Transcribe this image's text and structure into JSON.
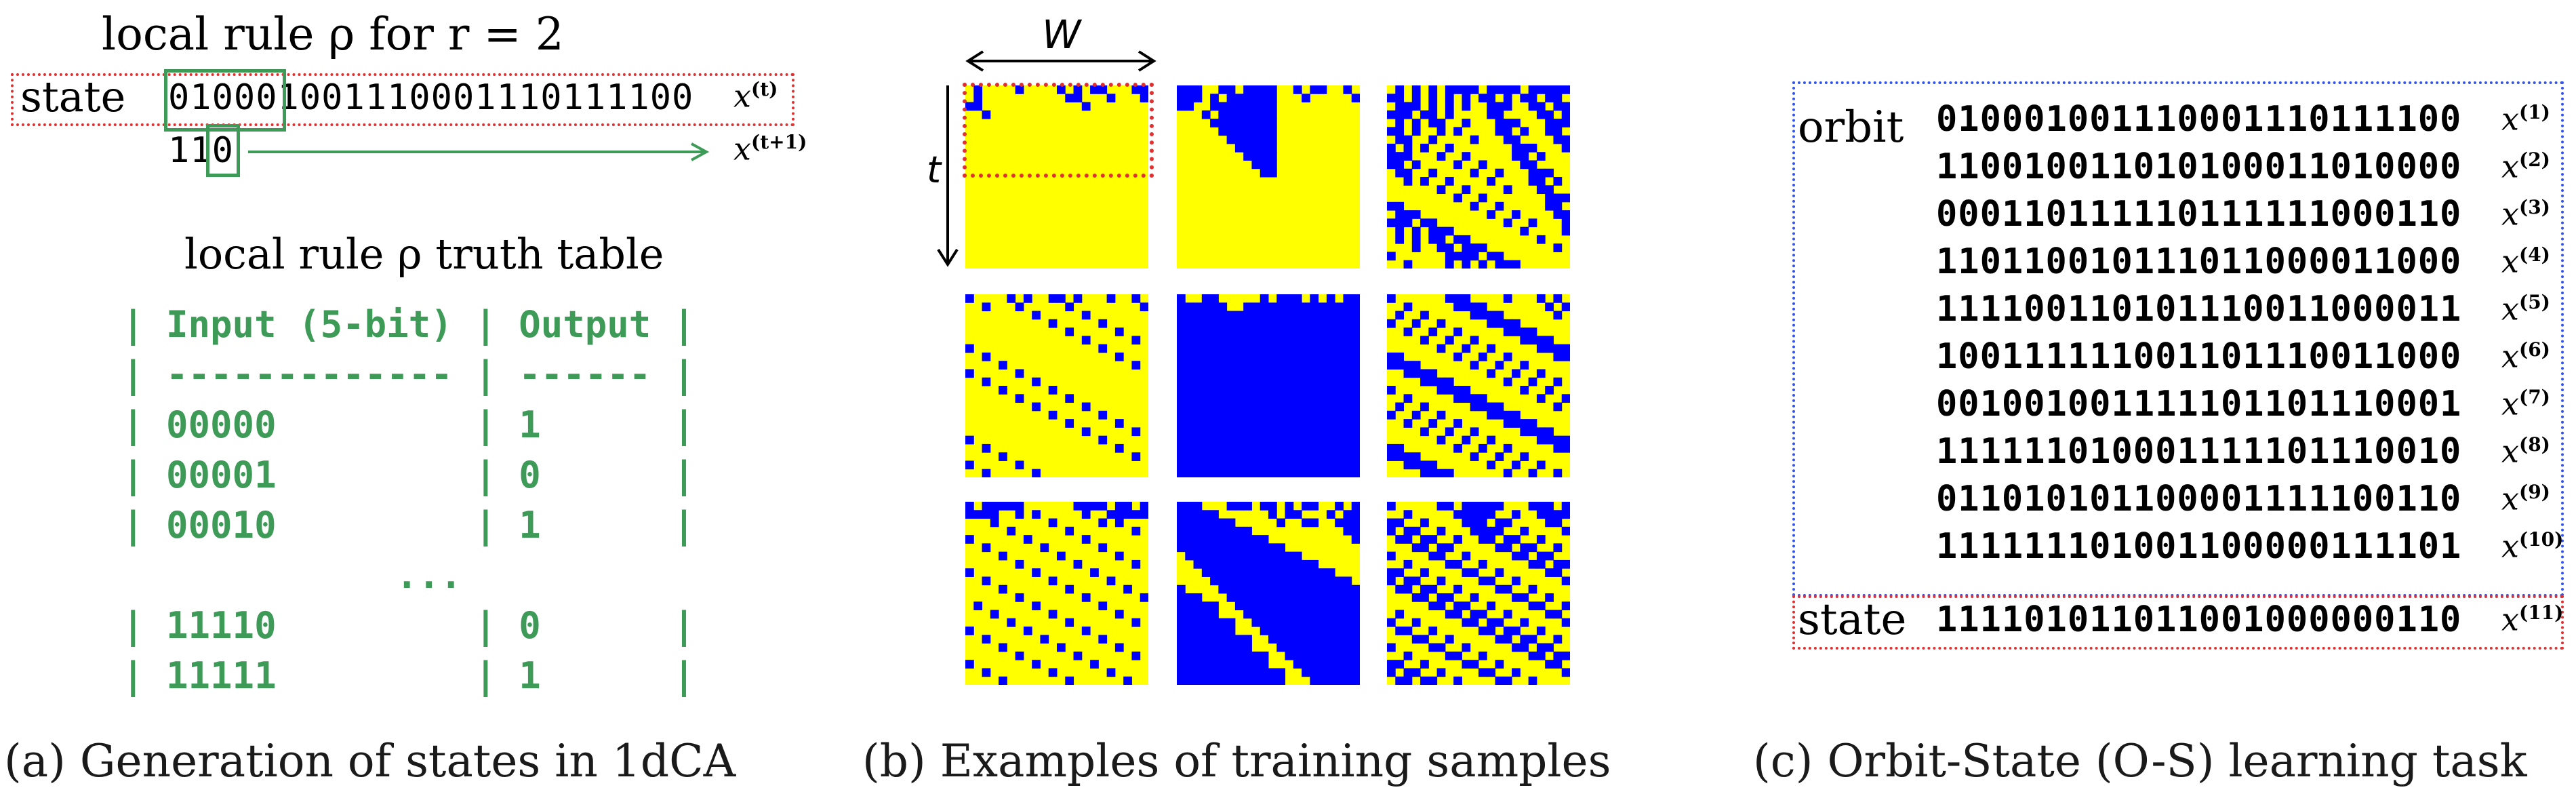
{
  "panel_a": {
    "title": "local rule ρ for r = 2",
    "state_label": "state",
    "state_bits": "010001001110001110111100",
    "x_t_label": "x",
    "x_t_sup": "(t)",
    "next_bits_prefix": "11",
    "next_bits_last": "0",
    "x_t1_label": "x",
    "x_t1_sup": "(t+1)",
    "table_title": "local rule ρ truth table",
    "table_lines": [
      "| Input (5-bit) | Output |",
      "| ------------- | ------ |",
      "| 00000         | 1      |",
      "| 00001         | 0      |",
      "| 00010         | 1      |",
      "...",
      "| 11110         | 0      |",
      "| 11111         | 1      |"
    ],
    "caption": "(a) Generation of states in 1dCA",
    "colors": {
      "green": "#3d9b57",
      "red": "#e03030"
    }
  },
  "panel_b": {
    "w_label": "W",
    "t_label": "t",
    "caption": "(b) Examples of training samples",
    "colors": {
      "yellow": "#ffff00",
      "blue": "#0000ff"
    }
  },
  "panel_c": {
    "orbit_label": "orbit",
    "orbit_rows": [
      {
        "bits": "010001001110001110111100",
        "label": "x",
        "sup": "(1)"
      },
      {
        "bits": "110010011010100011010000",
        "label": "x",
        "sup": "(2)"
      },
      {
        "bits": "000110111110111111000110",
        "label": "x",
        "sup": "(3)"
      },
      {
        "bits": "110110010111011000011000",
        "label": "x",
        "sup": "(4)"
      },
      {
        "bits": "111100110101110011000011",
        "label": "x",
        "sup": "(5)"
      },
      {
        "bits": "100111111001101110011000",
        "label": "x",
        "sup": "(6)"
      },
      {
        "bits": "001001001111101101110001",
        "label": "x",
        "sup": "(7)"
      },
      {
        "bits": "111111010001111101110010",
        "label": "x",
        "sup": "(8)"
      },
      {
        "bits": "011010101100001111100110",
        "label": "x",
        "sup": "(9)"
      },
      {
        "bits": "111111101001100000111101",
        "label": "x",
        "sup": "(10)"
      }
    ],
    "state_label": "state",
    "state_row": {
      "bits": "111101011011001000000110",
      "label": "x",
      "sup": "(11)"
    },
    "caption": "(c) Orbit-State (O-S) learning task",
    "colors": {
      "blue_dotted": "#3355ee",
      "red_dotted": "#e03030"
    }
  }
}
